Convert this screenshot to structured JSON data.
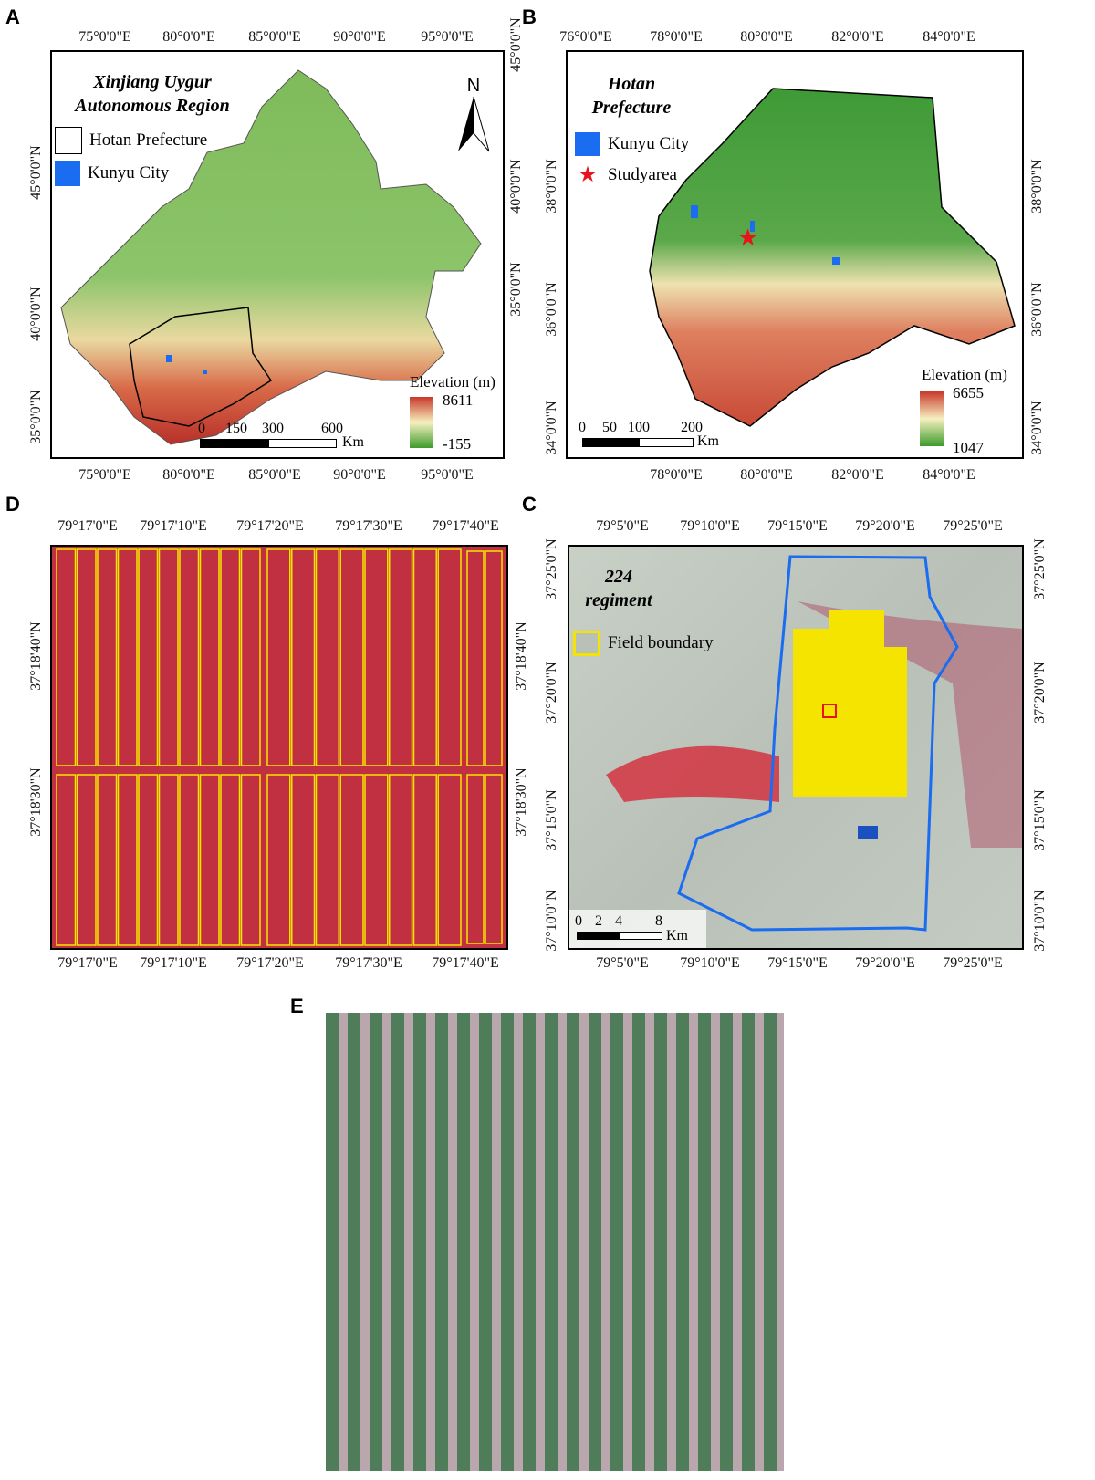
{
  "panels": {
    "A": {
      "label": "A",
      "title_line1": "Xinjiang Uygur",
      "title_line2": "Autonomous Region",
      "legend": [
        {
          "label": "Hotan Prefecture",
          "swatch": "#ffffff"
        },
        {
          "label": "Kunyu City",
          "swatch": "#1a6cf0"
        }
      ],
      "north": "N",
      "elevation_title": "Elevation (m)",
      "elev_max": "8611",
      "elev_min": "-155",
      "scale": [
        "0",
        "150",
        "300",
        "600"
      ],
      "scale_unit": "Km",
      "lon": [
        "75°0'0\"E",
        "80°0'0\"E",
        "85°0'0\"E",
        "90°0'0\"E",
        "95°0'0\"E"
      ],
      "lat": [
        "45°0'0\"N",
        "40°0'0\"N",
        "35°0'0\"N"
      ]
    },
    "B": {
      "label": "B",
      "title_line1": "Hotan",
      "title_line2": "Prefecture",
      "legend": [
        {
          "label": "Kunyu City",
          "swatch": "#1a6cf0"
        },
        {
          "label": "Studyarea",
          "swatch": "#e8141c"
        }
      ],
      "elevation_title": "Elevation (m)",
      "elev_max": "6655",
      "elev_min": "1047",
      "scale": [
        "0",
        "50",
        "100",
        "200"
      ],
      "scale_unit": "Km",
      "lon_top": [
        "76°0'0\"E",
        "78°0'0\"E",
        "80°0'0\"E",
        "82°0'0\"E",
        "84°0'0\"E"
      ],
      "lon_bottom": [
        "78°0'0\"E",
        "80°0'0\"E",
        "82°0'0\"E",
        "84°0'0\"E"
      ],
      "lat": [
        "38°0'0\"N",
        "36°0'0\"N",
        "34°0'0\"N"
      ]
    },
    "D": {
      "label": "D",
      "lon": [
        "79°17'0\"E",
        "79°17'10\"E",
        "79°17'20\"E",
        "79°17'30\"E",
        "79°17'40\"E"
      ],
      "lat": [
        "37°18'40\"N",
        "37°18'30\"N"
      ]
    },
    "C": {
      "label": "C",
      "title_line1": "224",
      "title_line2": "regiment",
      "legend": [
        {
          "label": "Field boundary",
          "swatch": "#f5e400"
        }
      ],
      "scale": [
        "0",
        "2",
        "4",
        "8"
      ],
      "scale_unit": "Km",
      "lon": [
        "79°5'0\"E",
        "79°10'0\"E",
        "79°15'0\"E",
        "79°20'0\"E",
        "79°25'0\"E"
      ],
      "lat": [
        "37°25'0\"N",
        "37°20'0\"N",
        "37°15'0\"N",
        "37°10'0\"N"
      ]
    },
    "E": {
      "label": "E"
    }
  },
  "colors": {
    "elev_high": "#c8382a",
    "elev_mid": "#f6f0c0",
    "elev_low": "#3e9a2c",
    "false_color_red": "#d42a3a",
    "boundary_blue": "#1a6cf0",
    "field_yellow": "#f5e400"
  }
}
